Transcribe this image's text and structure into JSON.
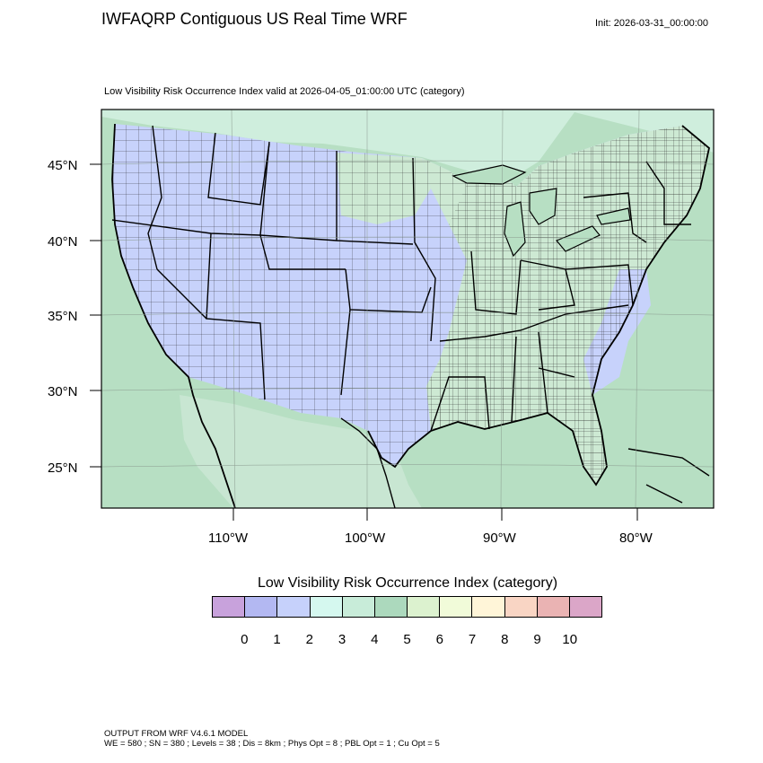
{
  "header": {
    "title": "IWFAQRP Contiguous US Real Time WRF",
    "init": "Init: 2026-03-31_00:00:00",
    "subtitle": "Low Visibility Risk Occurrence Index valid at 2026-04-05_01:00:00 UTC   (category)"
  },
  "map": {
    "lat_labels": [
      "45°N",
      "40°N",
      "35°N",
      "30°N",
      "25°N"
    ],
    "lon_labels": [
      "110°W",
      "100°W",
      "90°W",
      "80°W"
    ],
    "colors": {
      "ocean": "#b7dfc3",
      "land_dominant": "#c7d2fb",
      "east_land": "#cde9d3",
      "canada": "#cfeedd",
      "mexico": "#c8e6d2"
    }
  },
  "colorbar": {
    "title": "Low Visibility Risk Occurrence Index  (category)",
    "ticks": [
      "0",
      "1",
      "2",
      "3",
      "4",
      "5",
      "6",
      "7",
      "8",
      "9",
      "10"
    ],
    "colors": [
      "#c8a2dc",
      "#b3b8f2",
      "#c6d1fb",
      "#d5f8ef",
      "#c8ecd9",
      "#acd9bd",
      "#dcf2cf",
      "#f1fbd9",
      "#fff5d8",
      "#f9d5c4",
      "#eab3b3",
      "#dba6c8"
    ]
  },
  "footer": {
    "line1": "OUTPUT FROM WRF V4.6.1 MODEL",
    "line2": "WE = 580 ; SN = 380 ; Levels = 38 ; Dis = 8km ; Phys Opt = 8 ; PBL Opt = 1 ; Cu Opt = 5"
  }
}
